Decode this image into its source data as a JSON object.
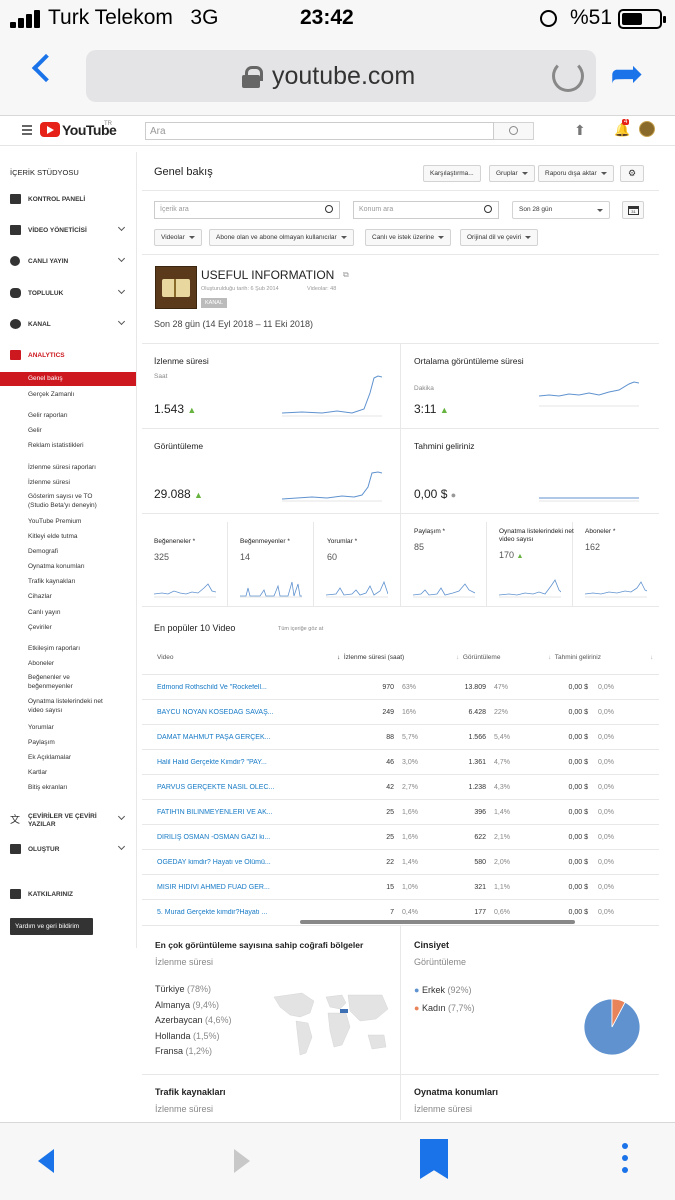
{
  "status_bar": {
    "carrier": "Turk Telekom",
    "network": "3G",
    "time": "23:42",
    "battery": "%51"
  },
  "browser": {
    "url": "youtube.com"
  },
  "yt_header": {
    "logo_text": "YouTube",
    "logo_sup": "TR",
    "search_placeholder": "Ara",
    "notification_count": "4"
  },
  "sidebar": {
    "studio_title": "İÇERİK STÜDYOSU",
    "main_items": [
      {
        "label": "KONTROL PANELİ"
      },
      {
        "label": "VİDEO YÖNETİCİSİ"
      },
      {
        "label": "CANLI YAYIN"
      },
      {
        "label": "TOPLULUK"
      },
      {
        "label": "KANAL"
      },
      {
        "label": "ANALYTICS"
      }
    ],
    "analytics_items": [
      "Genel bakış",
      "Gerçek Zamanlı",
      "Gelir raporları",
      "Gelir",
      "Reklam istatistikleri",
      "İzlenme süresi raporları",
      "İzlenme süresi",
      "Gösterim sayısı ve TO",
      "(Studio Beta'yı deneyin)",
      "YouTube Premium",
      "Kitleyi elde tutma",
      "Demografi",
      "Oynatma konumları",
      "Trafik kaynakları",
      "Cihazlar",
      "Canlı yayın",
      "Çeviriler",
      "Etkileşim raporları",
      "Aboneler",
      "Beğenenler ve",
      "beğenmeyenler",
      "Oynatma listelerindeki net",
      "video sayısı",
      "Yorumlar",
      "Paylaşım",
      "Ek Açıklamalar",
      "Kartlar",
      "Bitiş ekranları"
    ],
    "bottom_items": [
      {
        "label": "ÇEVİRİLER VE ÇEVİRİ"
      },
      {
        "label": "YAZILAR"
      },
      {
        "label": "OLUŞTUR"
      },
      {
        "label": "KATKILARINIZ"
      }
    ],
    "help_button": "Yardım ve geri bildirim"
  },
  "main": {
    "page_title": "Genel bakış",
    "toolbar": {
      "compare": "Karşılaştırma...",
      "groups": "Gruplar",
      "export": "Raporu dışa aktar"
    },
    "filters": {
      "content_placeholder": "İçerik ara",
      "location_placeholder": "Konum ara",
      "date_range": "Son 28 gün",
      "calendar_day": "31",
      "chips": [
        "Videolar",
        "Abone olan ve abone olmayan kullanıcılar",
        "Canlı ve istek üzerine",
        "Orijinal dil ve çeviri"
      ]
    },
    "channel": {
      "name": "USEFUL INFORMATION",
      "created": "Oluşturulduğu tarih: 6 Şub 2014",
      "videos": "Videolar: 48",
      "tag": "KANAL",
      "period": "Son 28 gün (14 Eyl 2018 – 11 Eki 2018)"
    },
    "metrics": [
      {
        "title": "İzlenme süresi",
        "unit": "Saat",
        "value": "1.543",
        "trend": "up"
      },
      {
        "title": "Ortalama görüntüleme süresi",
        "unit": "Dakika",
        "value": "3:11",
        "trend": "up"
      },
      {
        "title": "Görüntüleme",
        "unit": "",
        "value": "29.088",
        "trend": "up"
      },
      {
        "title": "Tahmini geliriniz",
        "unit": "",
        "value": "0,00 $",
        "trend": "flat"
      }
    ],
    "small_metrics": [
      {
        "title": "Beğeneneler *",
        "value": "325",
        "trend": ""
      },
      {
        "title": "Beğenmeyenler *",
        "value": "14",
        "trend": ""
      },
      {
        "title": "Yorumlar *",
        "value": "60",
        "trend": ""
      },
      {
        "title": "Paylaşım *",
        "value": "85",
        "trend": ""
      },
      {
        "title": "Oynatma listelerindeki net video sayısı",
        "value": "170",
        "trend": "up"
      },
      {
        "title": "Aboneler *",
        "value": "162",
        "trend": ""
      }
    ],
    "top_videos": {
      "title": "En popüler 10 Video",
      "see_all": "Tüm içeriğe göz at",
      "headers": [
        "Video",
        "İzlenme süresi (saat)",
        "Görüntüleme",
        "Tahmini geliriniz"
      ],
      "rows": [
        {
          "title": "Edmond Rothschild Ve \"Rockefell...",
          "watch": "970",
          "watch_pct": "63%",
          "views": "13.809",
          "views_pct": "47%",
          "rev": "0,00 $",
          "rev_pct": "0,0%"
        },
        {
          "title": "BAYCU NOYAN KÖSEDAĞ SAVAŞ...",
          "watch": "249",
          "watch_pct": "16%",
          "views": "6.428",
          "views_pct": "22%",
          "rev": "0,00 $",
          "rev_pct": "0,0%"
        },
        {
          "title": "DAMAT MAHMUT PAŞA GERÇEK...",
          "watch": "88",
          "watch_pct": "5,7%",
          "views": "1.566",
          "views_pct": "5,4%",
          "rev": "0,00 $",
          "rev_pct": "0,0%"
        },
        {
          "title": "Halil Halid Gerçekte Kimdir? \"PAY...",
          "watch": "46",
          "watch_pct": "3,0%",
          "views": "1.361",
          "views_pct": "4,7%",
          "rev": "0,00 $",
          "rev_pct": "0,0%"
        },
        {
          "title": "PARVUS GERÇEKTE NASIL ÖLEC...",
          "watch": "42",
          "watch_pct": "2,7%",
          "views": "1.238",
          "views_pct": "4,3%",
          "rev": "0,00 $",
          "rev_pct": "0,0%"
        },
        {
          "title": "FATİH'İN BİLİNMEYENLERİ VE AK...",
          "watch": "25",
          "watch_pct": "1,6%",
          "views": "396",
          "views_pct": "1,4%",
          "rev": "0,00 $",
          "rev_pct": "0,0%"
        },
        {
          "title": "DİRİLİŞ OSMAN -OSMAN GAZİ ki...",
          "watch": "25",
          "watch_pct": "1,6%",
          "views": "622",
          "views_pct": "2,1%",
          "rev": "0,00 $",
          "rev_pct": "0,0%"
        },
        {
          "title": "ÖGEDAY kimdir? Hayatı ve Ölümü...",
          "watch": "22",
          "watch_pct": "1,4%",
          "views": "580",
          "views_pct": "2,0%",
          "rev": "0,00 $",
          "rev_pct": "0,0%"
        },
        {
          "title": "MISIR HİDİVİ AHMED FUAD GER...",
          "watch": "15",
          "watch_pct": "1,0%",
          "views": "321",
          "views_pct": "1,1%",
          "rev": "0,00 $",
          "rev_pct": "0,0%"
        },
        {
          "title": "5. Murad Gerçekte kimdir?Hayatı ...",
          "watch": "7",
          "watch_pct": "0,4%",
          "views": "177",
          "views_pct": "0,6%",
          "rev": "0,00 $",
          "rev_pct": "0,0%"
        }
      ]
    },
    "geo": {
      "title": "En çok görüntüleme sayısına sahip coğrafi bölgeler",
      "subtitle": "İzlenme süresi",
      "items": [
        {
          "country": "Türkiye",
          "pct": "(78%)"
        },
        {
          "country": "Almanya",
          "pct": "(9,4%)"
        },
        {
          "country": "Azerbaycan",
          "pct": "(4,6%)"
        },
        {
          "country": "Hollanda",
          "pct": "(1,5%)"
        },
        {
          "country": "Fransa",
          "pct": "(1,2%)"
        }
      ]
    },
    "gender": {
      "title": "Cinsiyet",
      "subtitle": "Görüntüleme",
      "items": [
        {
          "label": "Erkek",
          "pct": "(92%)",
          "color": "#5f92cf"
        },
        {
          "label": "Kadın",
          "pct": "(7,7%)",
          "color": "#e8835a"
        }
      ]
    },
    "traffic": {
      "title": "Trafik kaynakları",
      "subtitle": "İzlenme süresi"
    },
    "playback": {
      "title": "Oynatma konumları",
      "subtitle": "İzlenme süresi"
    }
  }
}
